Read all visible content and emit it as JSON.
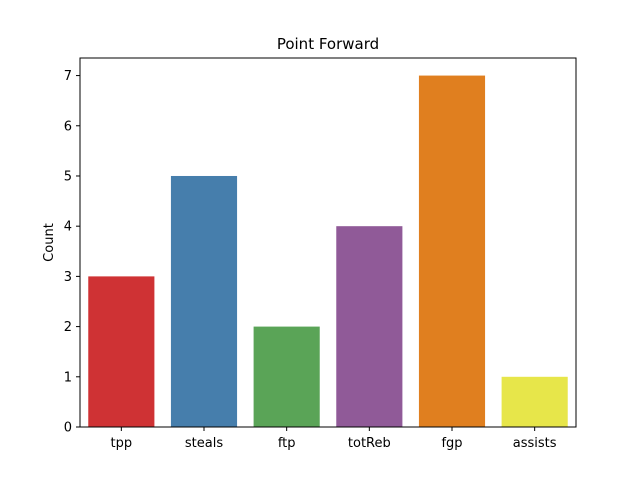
{
  "chart_data": {
    "type": "bar",
    "title": "Point Forward",
    "xlabel": "",
    "ylabel": "Count",
    "categories": [
      "tpp",
      "steals",
      "ftp",
      "totReb",
      "fgp",
      "assists"
    ],
    "values": [
      3,
      5,
      2,
      4,
      7,
      1
    ],
    "colors": [
      "#d62728",
      "#377eb8",
      "#4daf4a",
      "#984ea3",
      "#ff7f00",
      "#ffff33"
    ],
    "bar_colors": [
      "#cf3234",
      "#467eac",
      "#5aa457",
      "#905a98",
      "#e07f1f",
      "#e7e64a"
    ],
    "ylim": [
      0,
      7.35
    ],
    "yticks": [
      0,
      1,
      2,
      3,
      4,
      5,
      6,
      7
    ],
    "ytick_labels": [
      "0",
      "1",
      "2",
      "3",
      "4",
      "5",
      "6",
      "7"
    ],
    "grid": false,
    "legend": "none"
  }
}
